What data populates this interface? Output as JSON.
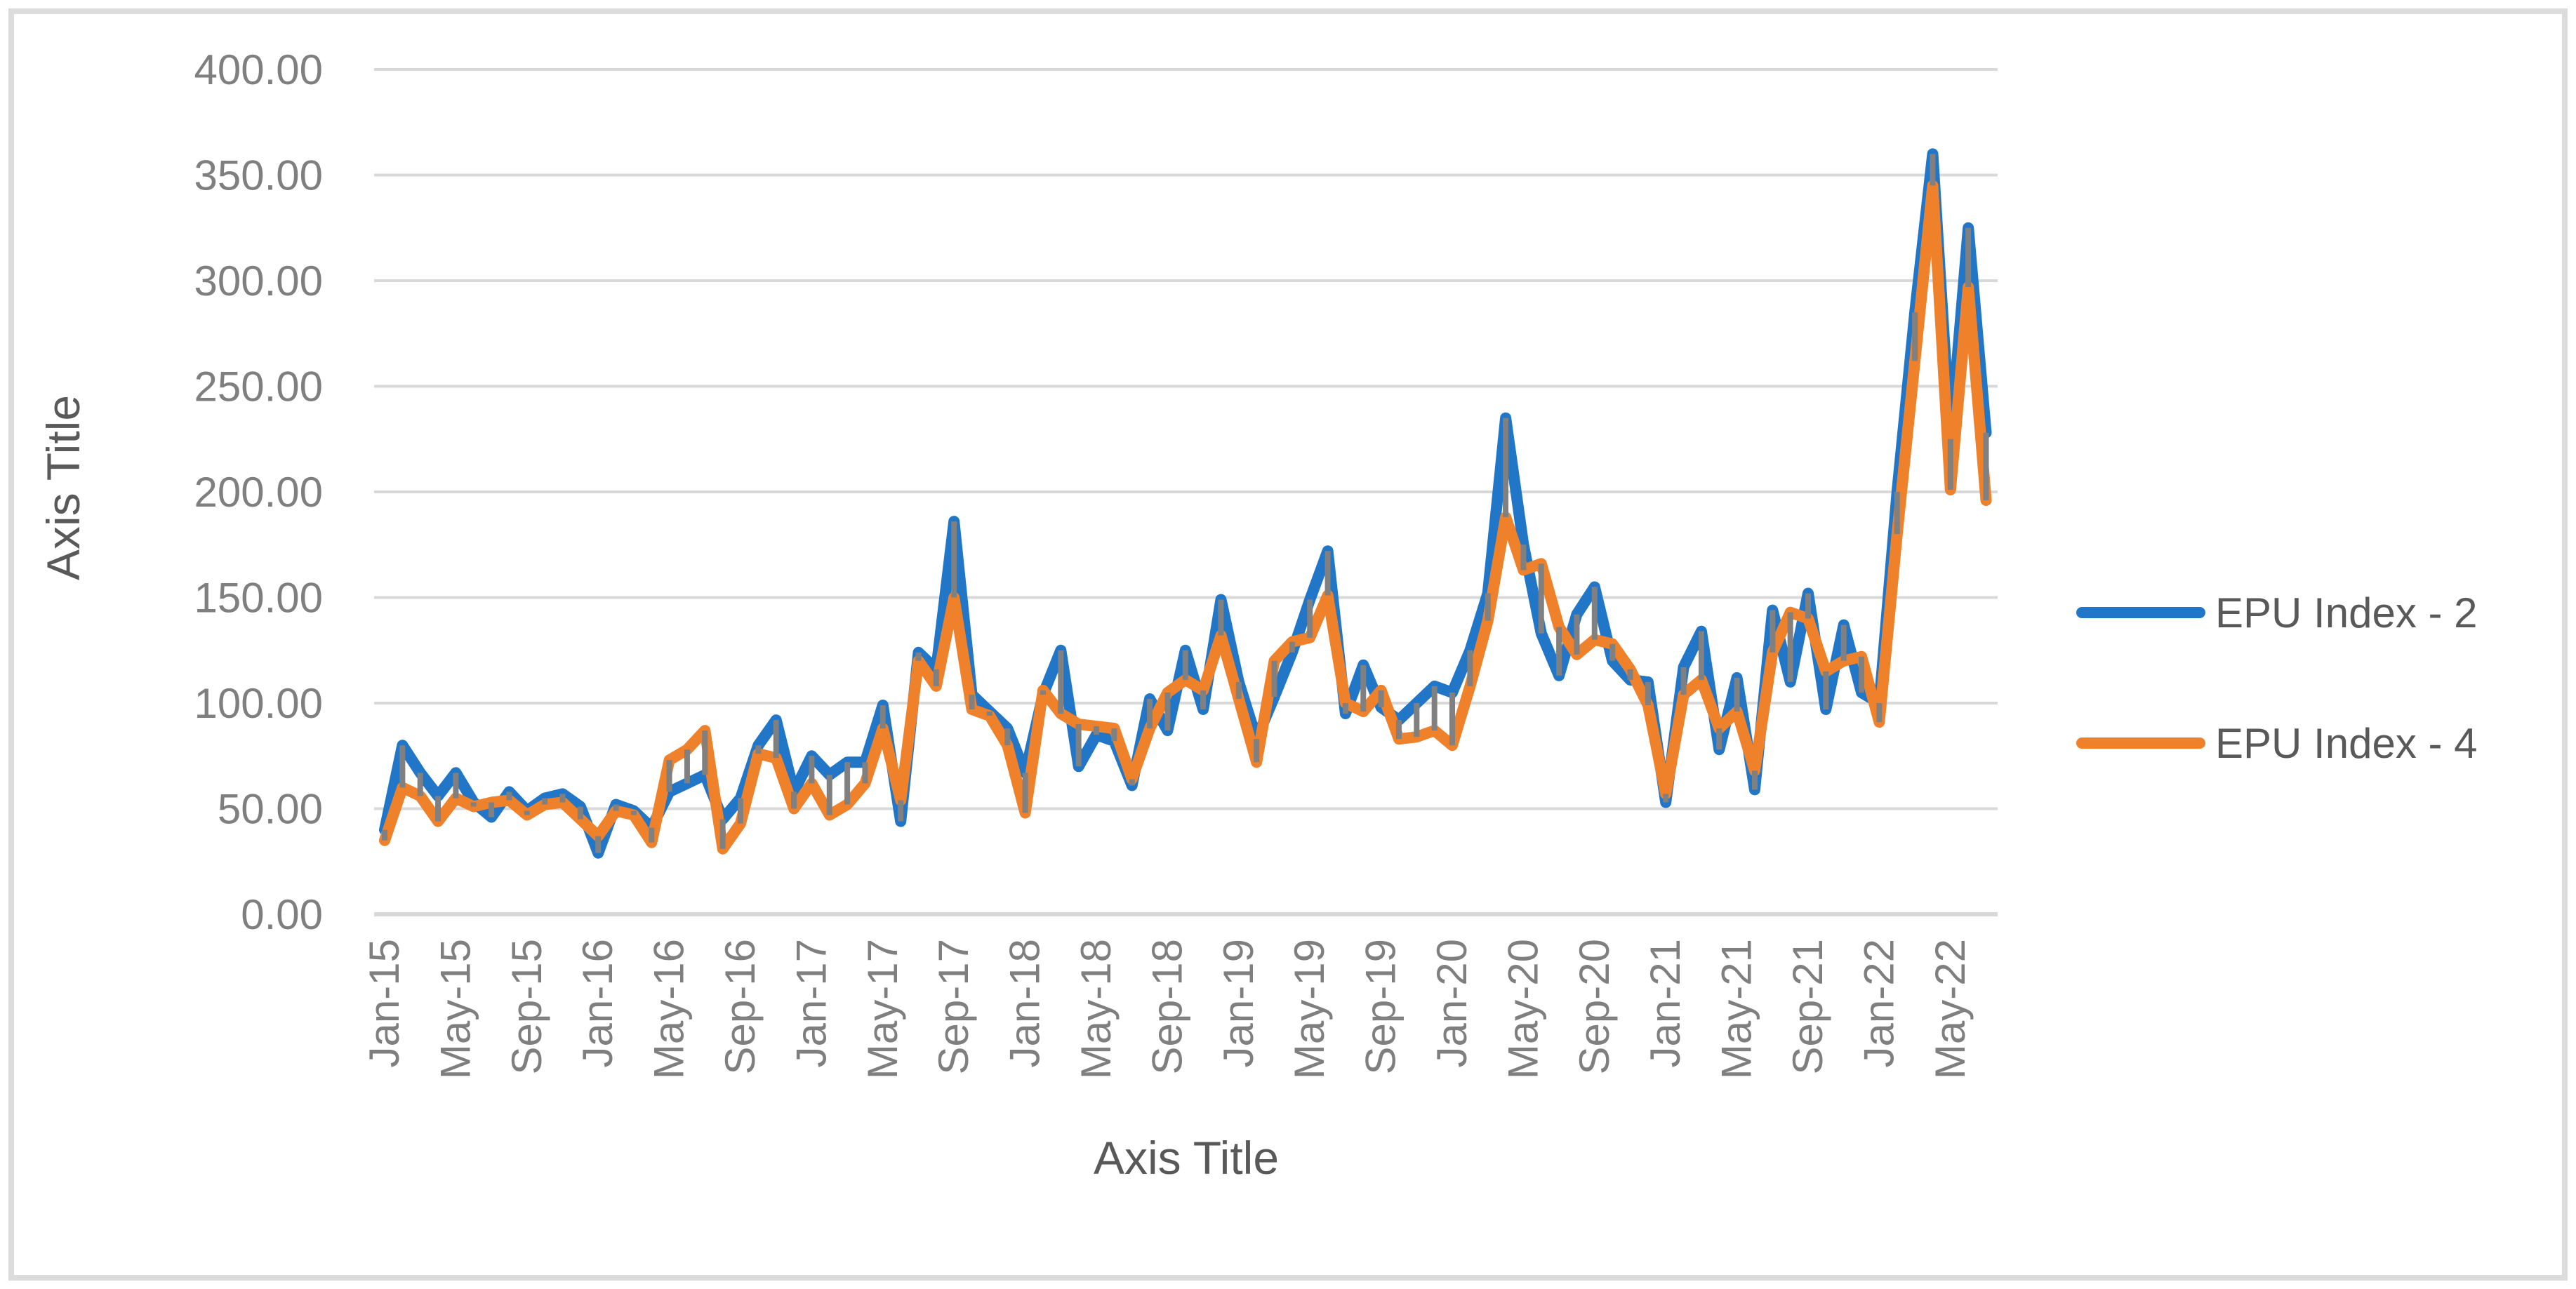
{
  "chart_data": {
    "type": "line",
    "title": "",
    "xlabel": "Axis Title",
    "ylabel": "Axis Title",
    "ylim": [
      0,
      400
    ],
    "ytick_step": 50,
    "ytick_labels": [
      "0.00",
      "50.00",
      "100.00",
      "150.00",
      "200.00",
      "250.00",
      "300.00",
      "350.00",
      "400.00"
    ],
    "xtick_every": 4,
    "grid": true,
    "legend_position": "right",
    "gridline_color": "#d9d9d9",
    "tick_text_color": "#7f7f7f",
    "title_text_color": "#595959",
    "high_low_line_color": "#808080",
    "categories": [
      "Jan-15",
      "Feb-15",
      "Mar-15",
      "Apr-15",
      "May-15",
      "Jun-15",
      "Jul-15",
      "Aug-15",
      "Sep-15",
      "Oct-15",
      "Nov-15",
      "Dec-15",
      "Jan-16",
      "Feb-16",
      "Mar-16",
      "Apr-16",
      "May-16",
      "Jun-16",
      "Jul-16",
      "Aug-16",
      "Sep-16",
      "Oct-16",
      "Nov-16",
      "Dec-16",
      "Jan-17",
      "Feb-17",
      "Mar-17",
      "Apr-17",
      "May-17",
      "Jun-17",
      "Jul-17",
      "Aug-17",
      "Sep-17",
      "Oct-17",
      "Nov-17",
      "Dec-17",
      "Jan-18",
      "Feb-18",
      "Mar-18",
      "Apr-18",
      "May-18",
      "Jun-18",
      "Jul-18",
      "Aug-18",
      "Sep-18",
      "Oct-18",
      "Nov-18",
      "Dec-18",
      "Jan-19",
      "Feb-19",
      "Mar-19",
      "Apr-19",
      "May-19",
      "Jun-19",
      "Jul-19",
      "Aug-19",
      "Sep-19",
      "Oct-19",
      "Nov-19",
      "Dec-19",
      "Jan-20",
      "Feb-20",
      "Mar-20",
      "Apr-20",
      "May-20",
      "Jun-20",
      "Jul-20",
      "Aug-20",
      "Sep-20",
      "Oct-20",
      "Nov-20",
      "Dec-20",
      "Jan-21",
      "Feb-21",
      "Mar-21",
      "Apr-21",
      "May-21",
      "Jun-21",
      "Jul-21",
      "Aug-21",
      "Sep-21",
      "Oct-21",
      "Nov-21",
      "Dec-21",
      "Jan-22",
      "Feb-22",
      "Mar-22",
      "Apr-22",
      "May-22",
      "Jun-22",
      "Jul-22"
    ],
    "series": [
      {
        "name": "EPU Index - 2",
        "color": "#2176c7",
        "values": [
          40,
          80,
          67,
          56,
          67,
          53,
          46,
          58,
          49,
          55,
          57,
          51,
          29,
          52,
          49,
          41,
          58,
          62,
          66,
          45,
          55,
          80,
          92,
          58,
          75,
          66,
          72,
          72,
          99,
          44,
          124,
          116,
          186,
          104,
          96,
          88,
          67,
          104,
          125,
          70,
          85,
          82,
          61,
          102,
          87,
          125,
          97,
          149,
          110,
          83,
          103,
          124,
          149,
          172,
          95,
          118,
          98,
          92,
          100,
          108,
          105,
          125,
          152,
          235,
          175,
          133,
          113,
          142,
          155,
          120,
          111,
          110,
          53,
          117,
          134,
          78,
          112,
          59,
          144,
          110,
          152,
          97,
          137,
          105,
          100,
          200,
          285,
          360,
          225,
          325,
          228
        ]
      },
      {
        "name": "EPU Index - 4",
        "color": "#f0812b",
        "values": [
          35,
          60,
          56,
          44,
          55,
          51,
          53,
          54,
          47,
          52,
          53,
          45,
          37,
          49,
          47,
          34,
          73,
          78,
          87,
          31,
          43,
          76,
          74,
          50,
          62,
          47,
          52,
          62,
          88,
          54,
          120,
          108,
          150,
          97,
          94,
          80,
          48,
          106,
          95,
          90,
          89,
          88,
          64,
          88,
          105,
          111,
          106,
          132,
          102,
          72,
          120,
          129,
          131,
          151,
          100,
          96,
          106,
          83,
          84,
          87,
          80,
          108,
          139,
          188,
          163,
          166,
          136,
          123,
          130,
          128,
          116,
          99,
          57,
          104,
          111,
          88,
          96,
          68,
          124,
          143,
          140,
          115,
          120,
          122,
          91,
          180,
          262,
          345,
          201,
          297,
          196
        ]
      }
    ]
  },
  "y_axis_title": "Axis Title",
  "x_axis_title": "Axis Title",
  "legend": {
    "item1": "EPU Index - 2",
    "item2": "EPU Index - 4"
  }
}
